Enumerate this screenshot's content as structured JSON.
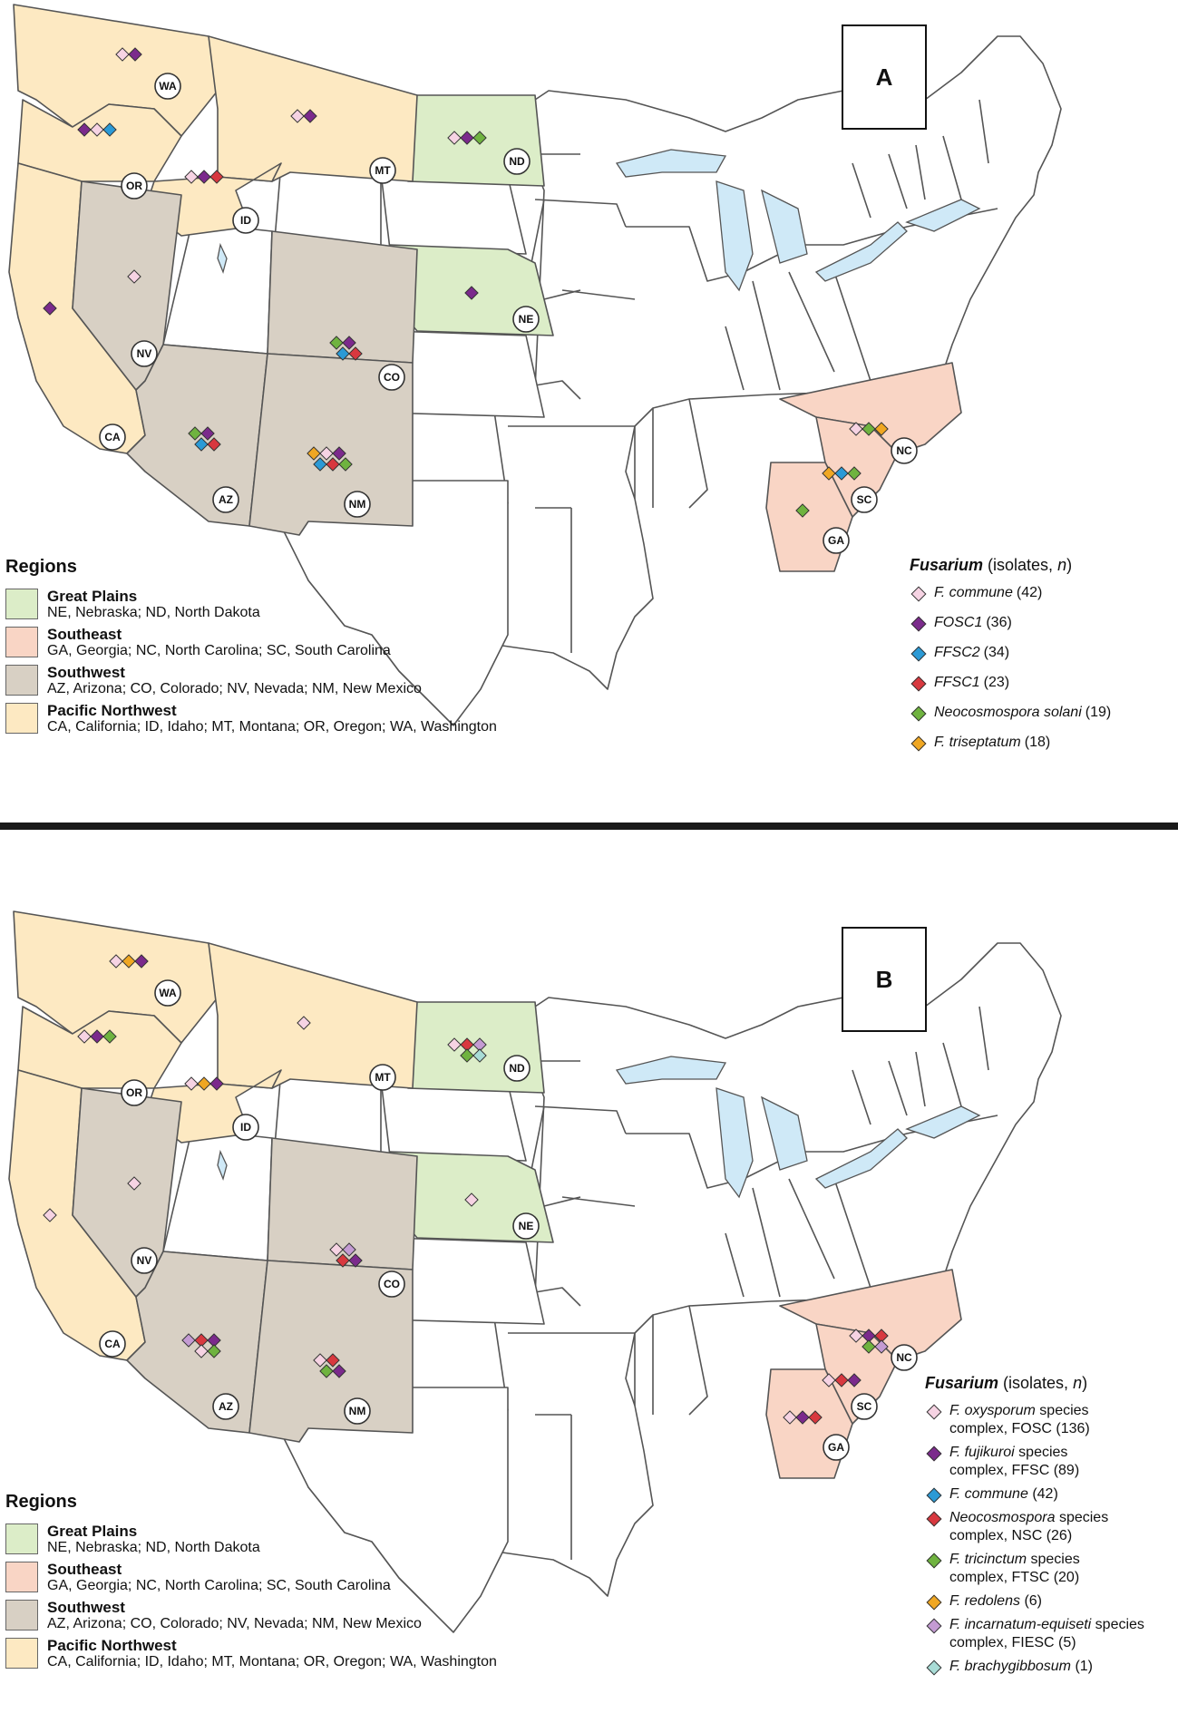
{
  "colors": {
    "great_plains": "#dcedc8",
    "southeast": "#f9d5c5",
    "southwest": "#d8d0c4",
    "pacific_northwest": "#fde9c2",
    "lakes": "#cfe9f7"
  },
  "states": {
    "WA": "WA",
    "OR": "OR",
    "ID": "ID",
    "MT": "MT",
    "ND": "ND",
    "NE": "NE",
    "NV": "NV",
    "CA": "CA",
    "CO": "CO",
    "AZ": "AZ",
    "NM": "NM",
    "NC": "NC",
    "SC": "SC",
    "GA": "GA"
  },
  "regions": {
    "title": "Regions",
    "items": [
      {
        "name": "Great Plains",
        "desc": "NE, Nebraska; ND, North Dakota",
        "color": "#dcedc8"
      },
      {
        "name": "Southeast",
        "desc": "GA, Georgia; NC, North Carolina; SC, South Carolina",
        "color": "#f9d5c5"
      },
      {
        "name": "Southwest",
        "desc": "AZ, Arizona; CO, Colorado; NV, Nevada; NM, New Mexico",
        "color": "#d8d0c4"
      },
      {
        "name": "Pacific Northwest",
        "desc": "CA, California; ID, Idaho; MT, Montana; OR, Oregon; WA, Washington",
        "color": "#fde9c2"
      }
    ]
  },
  "panel_a": {
    "label": "A",
    "legend": {
      "genus": "Fusarium",
      "suffix_open": " (isolates, ",
      "suffix_n": "n",
      "suffix_close": ")",
      "items": [
        {
          "name": "F. commune",
          "count": "(42)",
          "color": "#f6d3e3"
        },
        {
          "name": "FOSC1",
          "count": "(36)",
          "color": "#7b2a8c"
        },
        {
          "name": "FFSC2",
          "count": "(34)",
          "color": "#2b9ad6"
        },
        {
          "name": "FFSC1",
          "count": "(23)",
          "color": "#d8383f"
        },
        {
          "name": "Neocosmospora solani",
          "count": "(19)",
          "color": "#6fb33f"
        },
        {
          "name": "F. triseptatum",
          "count": "(18)",
          "color": "#f0a722"
        }
      ]
    },
    "occurrences": {
      "WA": [
        0,
        1
      ],
      "OR": [
        1,
        0,
        2
      ],
      "ID": [
        0,
        1,
        3
      ],
      "MT": [
        0,
        1
      ],
      "ND": [
        0,
        1,
        4
      ],
      "NE": [
        1
      ],
      "NV": [
        0
      ],
      "CA": [
        1
      ],
      "CO": [
        4,
        1,
        2,
        3
      ],
      "AZ": [
        4,
        1,
        2,
        3
      ],
      "NM": [
        5,
        0,
        1,
        2,
        3,
        4
      ],
      "NC": [
        0,
        4,
        5
      ],
      "SC": [
        5,
        2,
        4
      ],
      "GA": [
        4
      ]
    }
  },
  "panel_b": {
    "label": "B",
    "legend": {
      "genus": "Fusarium",
      "suffix_open": " (isolates, ",
      "suffix_n": "n",
      "suffix_close": ")",
      "items": [
        {
          "name": "F. oxysporum",
          "rest": " species\ncomplex, FOSC",
          "count": "(136)",
          "color": "#f6d3e3"
        },
        {
          "name": "F. fujikuroi",
          "rest": " species\ncomplex, FFSC",
          "count": "(89)",
          "color": "#7b2a8c"
        },
        {
          "name": "F. commune",
          "rest": "",
          "count": "(42)",
          "color": "#2b9ad6"
        },
        {
          "name": "Neocosmospora",
          "rest": " species\ncomplex, NSC",
          "count": "(26)",
          "color": "#d8383f"
        },
        {
          "name": "F. tricinctum",
          "rest": " species\ncomplex, FTSC",
          "count": "(20)",
          "color": "#6fb33f"
        },
        {
          "name": "F. redolens",
          "rest": "",
          "count": "(6)",
          "color": "#f0a722"
        },
        {
          "name": "F. incarnatum-equiseti",
          "rest": " species\ncomplex, FIESC",
          "count": "(5)",
          "color": "#c49bd3"
        },
        {
          "name": "F. brachygibbosum",
          "rest": "",
          "count": "(1)",
          "color": "#a8dcd6"
        }
      ]
    },
    "occurrences": {
      "WA": [
        0,
        5,
        1
      ],
      "OR": [
        0,
        1,
        4
      ],
      "ID": [
        0,
        5,
        1
      ],
      "MT": [
        0
      ],
      "ND": [
        0,
        3,
        6,
        4,
        7
      ],
      "NE": [
        0
      ],
      "NV": [
        0
      ],
      "CA": [
        0
      ],
      "CO": [
        0,
        6,
        3,
        1
      ],
      "AZ": [
        6,
        3,
        1,
        0,
        4
      ],
      "NM": [
        0,
        3,
        4,
        1
      ],
      "NC": [
        0,
        1,
        3,
        4,
        6
      ],
      "SC": [
        0,
        3,
        1
      ],
      "GA": [
        0,
        1,
        3
      ]
    }
  }
}
